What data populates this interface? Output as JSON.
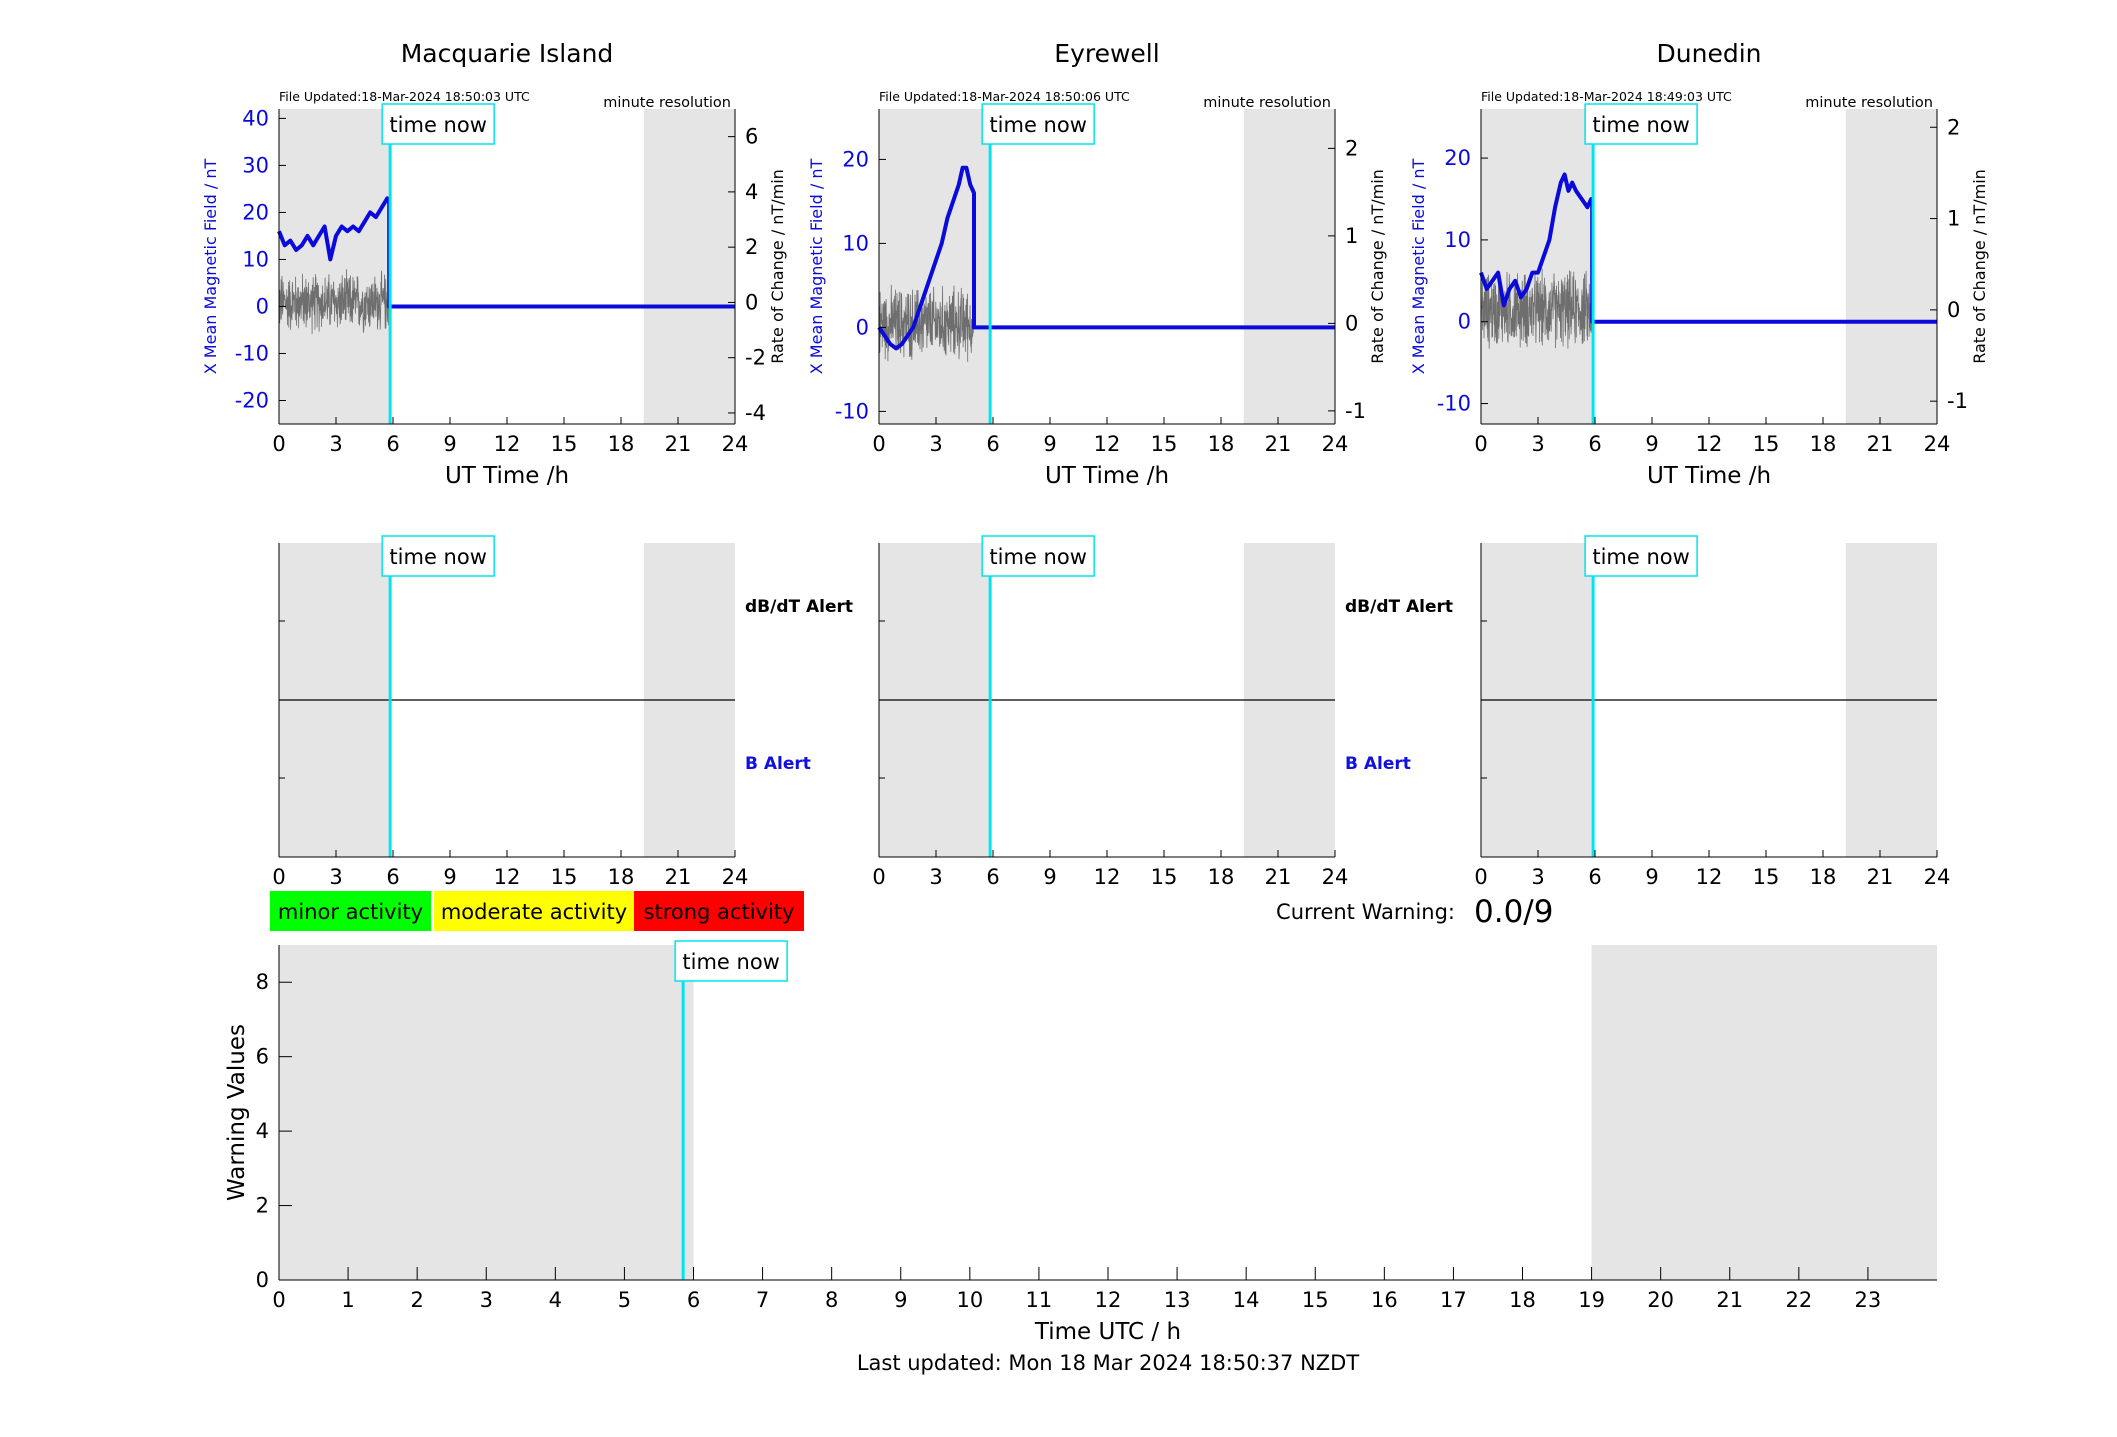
{
  "colors": {
    "field": "#0a0adc",
    "rate": "#6e6e6e",
    "time_now": "#00e5ee",
    "night_shade": "#e5e5e5",
    "b_alert": "#1010e0",
    "minor": "#00ff00",
    "moderate": "#ffff00",
    "strong": "#ff0000"
  },
  "top_x_label": "UT Time /h",
  "y_left_label": "X Mean Magnetic Field / nT",
  "y_right_label": "Rate of Change / nT/min",
  "resolution_label": "minute resolution",
  "time_now_label": "time now",
  "alert_labels": {
    "dbdt": "dB/dT Alert",
    "b": "B Alert"
  },
  "legend": {
    "minor": "minor activity",
    "moderate": "moderate activity",
    "strong": "strong activity"
  },
  "current_warning": {
    "label": "Current Warning:",
    "value": "0.0/9"
  },
  "last_updated": "Last updated: Mon 18 Mar 2024 18:50:37 NZDT",
  "chart_data": [
    {
      "type": "line",
      "title": "Macquarie Island",
      "file_updated": "File Updated:18-Mar-2024 18:50:03 UTC",
      "xlabel": "UT Time /h",
      "xlim": [
        0,
        24
      ],
      "xticks": [
        0,
        3,
        6,
        9,
        12,
        15,
        18,
        21,
        24
      ],
      "ylabel_left": "X Mean Magnetic Field / nT",
      "ylim_left": [
        -25,
        42
      ],
      "yticks_left": [
        -20,
        -10,
        0,
        10,
        20,
        30,
        40
      ],
      "ylabel_right": "Rate of Change / nT/min",
      "ylim_right": [
        -4.4,
        7
      ],
      "yticks_right": [
        -4,
        -2,
        0,
        2,
        4,
        6
      ],
      "time_now": 5.85,
      "night_shading": [
        [
          0,
          5.85
        ],
        [
          19.2,
          24
        ]
      ],
      "series": [
        {
          "name": "X Mean Magnetic Field",
          "axis": "left",
          "x": [
            0,
            0.3,
            0.6,
            0.9,
            1.2,
            1.5,
            1.8,
            2.1,
            2.4,
            2.7,
            3.0,
            3.3,
            3.6,
            3.9,
            4.2,
            4.5,
            4.8,
            5.1,
            5.4,
            5.7,
            5.8,
            5.8,
            24
          ],
          "y": [
            16,
            13,
            14,
            12,
            13,
            15,
            13,
            15,
            17,
            10,
            15,
            17,
            16,
            17,
            16,
            18,
            20,
            19,
            21,
            23,
            22,
            0,
            0
          ]
        },
        {
          "name": "Rate of Change",
          "axis": "right",
          "noise": true,
          "x_end": 5.8,
          "amplitude": 0.9
        }
      ]
    },
    {
      "type": "line",
      "title": "Eyrewell",
      "file_updated": "File Updated:18-Mar-2024 18:50:06 UTC",
      "xlabel": "UT Time /h",
      "xlim": [
        0,
        24
      ],
      "xticks": [
        0,
        3,
        6,
        9,
        12,
        15,
        18,
        21,
        24
      ],
      "ylim_left": [
        -11.5,
        26
      ],
      "yticks_left": [
        -10,
        0,
        10,
        20
      ],
      "ylim_right": [
        -1.15,
        2.45
      ],
      "yticks_right": [
        -1,
        0,
        1,
        2
      ],
      "time_now": 5.85,
      "night_shading": [
        [
          0,
          5.85
        ],
        [
          19.2,
          24
        ]
      ],
      "series": [
        {
          "name": "X Mean Magnetic Field",
          "axis": "left",
          "x": [
            0,
            0.3,
            0.6,
            0.9,
            1.2,
            1.5,
            1.8,
            2.1,
            2.4,
            2.7,
            3.0,
            3.3,
            3.6,
            3.9,
            4.2,
            4.4,
            4.6,
            4.8,
            5.0,
            5.0,
            24
          ],
          "y": [
            0,
            -1,
            -2,
            -2.5,
            -2,
            -1,
            0,
            2,
            4,
            6,
            8,
            10,
            13,
            15,
            17,
            19,
            19,
            17,
            16,
            0,
            0
          ]
        },
        {
          "name": "Rate of Change",
          "axis": "right",
          "noise": true,
          "x_end": 5.0,
          "amplitude": 0.35
        }
      ]
    },
    {
      "type": "line",
      "title": "Dunedin",
      "file_updated": "File Updated:18-Mar-2024 18:49:03 UTC",
      "xlabel": "UT Time /h",
      "xlim": [
        0,
        24
      ],
      "xticks": [
        0,
        3,
        6,
        9,
        12,
        15,
        18,
        21,
        24
      ],
      "ylim_left": [
        -12.5,
        26
      ],
      "yticks_left": [
        -10,
        0,
        10,
        20
      ],
      "ylim_right": [
        -1.25,
        2.2
      ],
      "yticks_right": [
        -1,
        0,
        1,
        2
      ],
      "time_now": 5.9,
      "night_shading": [
        [
          0,
          5.9
        ],
        [
          19.2,
          24
        ]
      ],
      "series": [
        {
          "name": "X Mean Magnetic Field",
          "axis": "left",
          "x": [
            0,
            0.3,
            0.6,
            0.9,
            1.2,
            1.5,
            1.8,
            2.1,
            2.4,
            2.7,
            3.0,
            3.3,
            3.6,
            3.9,
            4.2,
            4.4,
            4.6,
            4.8,
            5.0,
            5.3,
            5.6,
            5.8,
            5.85,
            5.85,
            24
          ],
          "y": [
            6,
            4,
            5,
            6,
            2,
            4,
            5,
            3,
            4,
            6,
            6,
            8,
            10,
            14,
            17,
            18,
            16,
            17,
            16,
            15,
            14,
            15,
            15,
            0,
            0
          ]
        },
        {
          "name": "Rate of Change",
          "axis": "right",
          "noise": true,
          "x_end": 5.85,
          "amplitude": 0.35
        }
      ]
    },
    {
      "type": "bar",
      "title": "",
      "xlabel": "Time UTC / h",
      "ylabel": "Warning Values",
      "xlim": [
        0,
        24
      ],
      "ylim": [
        0,
        9
      ],
      "xticks": [
        0,
        1,
        2,
        3,
        4,
        5,
        6,
        7,
        8,
        9,
        10,
        11,
        12,
        13,
        14,
        15,
        16,
        17,
        18,
        19,
        20,
        21,
        22,
        23
      ],
      "yticks": [
        0,
        2,
        4,
        6,
        8
      ],
      "time_now": 5.85,
      "night_shading": [
        [
          0,
          6
        ],
        [
          19,
          24
        ]
      ],
      "values": []
    }
  ]
}
